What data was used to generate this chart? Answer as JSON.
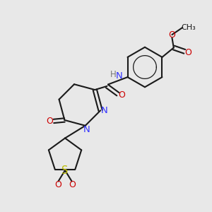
{
  "background_color": "#e8e8e8",
  "bond_color": "#1a1a1a",
  "n_color": "#3333ff",
  "o_color": "#cc0000",
  "s_color": "#bbbb00",
  "h_color": "#777777",
  "line_width": 1.5,
  "figsize": [
    3.0,
    3.0
  ],
  "dpi": 100,
  "xlim": [
    0,
    10
  ],
  "ylim": [
    0,
    10
  ]
}
